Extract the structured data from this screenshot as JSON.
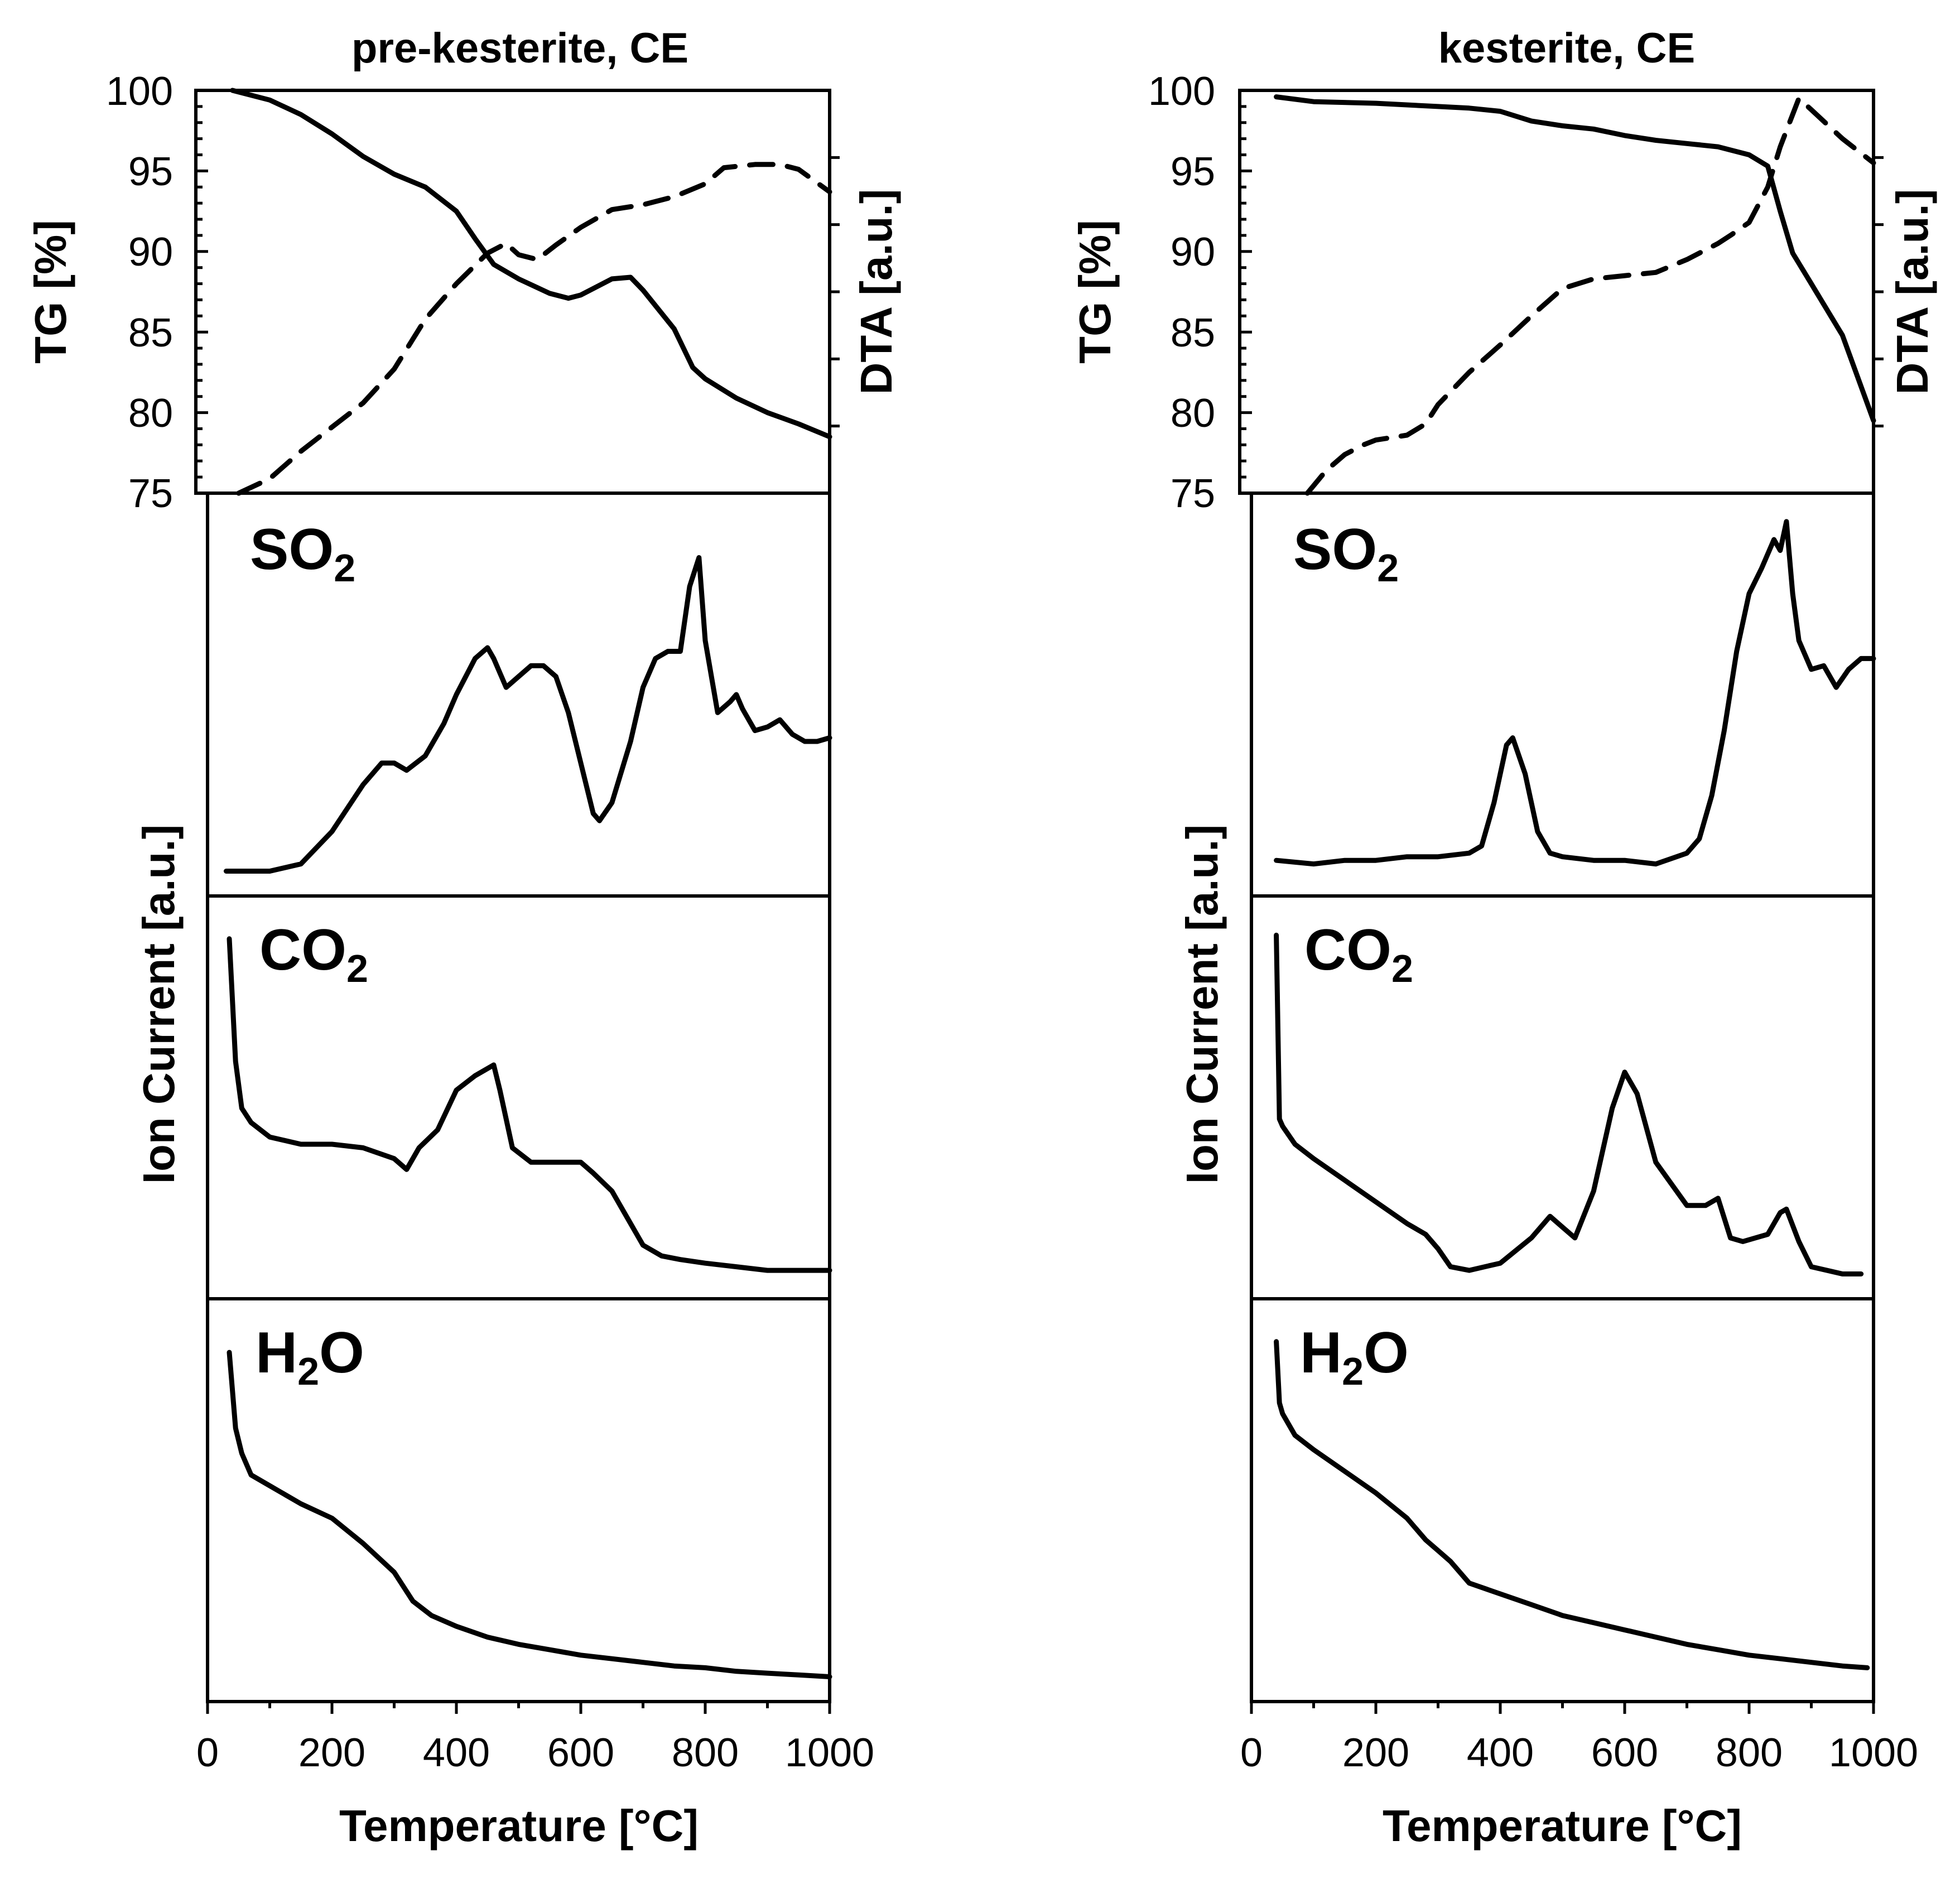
{
  "chart_data": [
    {
      "type": "line",
      "title": "pre-kesterite, CE",
      "xlabel": "Temperature [°C]",
      "xlim": [
        0,
        1000
      ],
      "xticks": [
        "0",
        "200",
        "400",
        "600",
        "800",
        "1000"
      ],
      "tg_panel": {
        "ylabel_left": "TG [%]",
        "ylabel_right": "DTA [a.u.]",
        "ylim": [
          75,
          100
        ],
        "yticks": [
          "75",
          "80",
          "85",
          "90",
          "95",
          "100"
        ],
        "series": [
          {
            "name": "TG",
            "style": "solid",
            "x": [
              40,
              100,
              150,
              200,
              250,
              300,
              350,
              400,
              430,
              460,
              500,
              550,
              580,
              600,
              650,
              680,
              700,
              750,
              780,
              800,
              850,
              900,
              950,
              1000
            ],
            "y": [
              100,
              99.4,
              98.5,
              97.3,
              95.9,
              94.8,
              94.0,
              92.5,
              90.8,
              89.2,
              88.3,
              87.4,
              87.1,
              87.3,
              88.3,
              88.4,
              87.6,
              85.2,
              82.8,
              82.1,
              80.9,
              80.0,
              79.3,
              78.5
            ]
          },
          {
            "name": "DTA",
            "style": "dashed",
            "x": [
              50,
              100,
              150,
              200,
              250,
              300,
              350,
              400,
              450,
              480,
              500,
              530,
              560,
              600,
              650,
              700,
              750,
              800,
              830,
              880,
              920,
              950,
              1000
            ],
            "y": [
              75.0,
              75.9,
              77.6,
              79.1,
              80.6,
              82.7,
              85.8,
              88.0,
              89.9,
              90.5,
              89.8,
              89.5,
              90.4,
              91.5,
              92.6,
              92.9,
              93.4,
              94.2,
              95.2,
              95.4,
              95.4,
              95.1,
              93.7
            ]
          }
        ]
      },
      "ion_current_ylabel": "Ion Current [a.u.]",
      "gas_panels": [
        {
          "gas": "SO",
          "subscript": "2",
          "ylim": [
            0,
            100
          ],
          "x": [
            30,
            60,
            100,
            150,
            200,
            250,
            280,
            300,
            320,
            350,
            380,
            400,
            430,
            450,
            460,
            480,
            500,
            520,
            540,
            560,
            580,
            600,
            620,
            630,
            650,
            680,
            700,
            720,
            740,
            760,
            775,
            790,
            800,
            820,
            840,
            850,
            860,
            880,
            900,
            920,
            940,
            960,
            980,
            1000
          ],
          "y": [
            1,
            1,
            1,
            3,
            12,
            25,
            31,
            31,
            29,
            33,
            42,
            50,
            60,
            63,
            60,
            52,
            55,
            58,
            58,
            55,
            45,
            31,
            17,
            15,
            20,
            37,
            52,
            60,
            62,
            62,
            80,
            88,
            65,
            45,
            48,
            50,
            46,
            40,
            41,
            43,
            39,
            37,
            37,
            38
          ]
        },
        {
          "gas": "CO",
          "subscript": "2",
          "ylim": [
            0,
            100
          ],
          "x": [
            35,
            45,
            55,
            70,
            100,
            150,
            200,
            250,
            300,
            320,
            340,
            370,
            400,
            430,
            450,
            460,
            470,
            490,
            520,
            550,
            580,
            600,
            620,
            650,
            680,
            700,
            730,
            760,
            800,
            850,
            900,
            950,
            1000
          ],
          "y": [
            94,
            60,
            47,
            43,
            39,
            37,
            37,
            36,
            33,
            30,
            36,
            41,
            52,
            56,
            58,
            59,
            52,
            36,
            32,
            32,
            32,
            32,
            29,
            24,
            15,
            9,
            6,
            5,
            4,
            3,
            2,
            2,
            2
          ]
        },
        {
          "gas": "H",
          "subscript": "2",
          "suffix": "O",
          "ylim": [
            0,
            100
          ],
          "x": [
            35,
            45,
            55,
            70,
            100,
            150,
            200,
            250,
            300,
            330,
            360,
            400,
            450,
            500,
            550,
            600,
            650,
            700,
            750,
            800,
            850,
            900,
            950,
            1000
          ],
          "y": [
            91,
            70,
            63,
            57,
            54,
            49,
            45,
            38,
            30,
            22,
            18,
            15,
            12,
            10,
            8.5,
            7,
            6,
            5,
            4,
            3.5,
            2.5,
            2,
            1.5,
            1
          ]
        }
      ]
    },
    {
      "type": "line",
      "title": "kesterite, CE",
      "xlabel": "Temperature [°C]",
      "xlim": [
        0,
        1000
      ],
      "xticks": [
        "0",
        "200",
        "400",
        "600",
        "800",
        "1000"
      ],
      "tg_panel": {
        "ylabel_left": "TG [%]",
        "ylabel_right": "DTA [a.u.]",
        "ylim": [
          75,
          100
        ],
        "yticks": [
          "75",
          "80",
          "85",
          "90",
          "95",
          "100"
        ],
        "series": [
          {
            "name": "TG",
            "style": "solid",
            "x": [
              40,
              100,
              200,
              300,
              350,
              400,
              450,
              500,
              550,
              600,
              650,
              700,
              750,
              800,
              830,
              850,
              870,
              900,
              950,
              1000
            ],
            "y": [
              99.6,
              99.3,
              99.2,
              99.0,
              98.9,
              98.7,
              98.1,
              97.8,
              97.6,
              97.2,
              96.9,
              96.7,
              96.5,
              96.0,
              95.3,
              92.5,
              89.9,
              88.0,
              84.8,
              79.5
            ]
          },
          {
            "name": "DTA",
            "style": "dashed",
            "x": [
              90,
              120,
              150,
              180,
              200,
              250,
              280,
              300,
              350,
              400,
              450,
              500,
              550,
              600,
              650,
              700,
              750,
              770,
              800,
              830,
              850,
              880,
              900,
              950,
              1000
            ],
            "y": [
              75.0,
              76.4,
              77.4,
              78.0,
              78.3,
              78.6,
              79.3,
              80.5,
              82.5,
              84.2,
              86.0,
              87.7,
              88.3,
              88.5,
              88.7,
              89.5,
              90.5,
              91.0,
              91.8,
              94.0,
              96.5,
              99.5,
              98.8,
              97.0,
              95.5
            ]
          }
        ]
      },
      "ion_current_ylabel": "Ion Current [a.u.]",
      "gas_panels": [
        {
          "gas": "SO",
          "subscript": "2",
          "ylim": [
            0,
            100
          ],
          "x": [
            40,
            100,
            150,
            200,
            250,
            300,
            350,
            370,
            390,
            410,
            420,
            440,
            460,
            480,
            500,
            550,
            600,
            650,
            700,
            720,
            740,
            760,
            780,
            800,
            820,
            840,
            850,
            860,
            870,
            880,
            900,
            920,
            940,
            960,
            980,
            1000
          ],
          "y": [
            4,
            3,
            4,
            4,
            5,
            5,
            6,
            8,
            20,
            36,
            38,
            28,
            12,
            6,
            5,
            4,
            4,
            3,
            6,
            10,
            22,
            40,
            62,
            78,
            85,
            93,
            90,
            98,
            78,
            65,
            57,
            58,
            52,
            57,
            60,
            60
          ]
        },
        {
          "gas": "CO",
          "subscript": "2",
          "ylim": [
            0,
            100
          ],
          "x": [
            40,
            45,
            50,
            70,
            100,
            150,
            200,
            250,
            280,
            300,
            320,
            350,
            400,
            450,
            480,
            500,
            520,
            550,
            580,
            600,
            620,
            650,
            700,
            730,
            750,
            770,
            790,
            810,
            830,
            850,
            860,
            880,
            900,
            950,
            980
          ],
          "y": [
            95,
            44,
            42,
            37,
            33,
            27,
            21,
            15,
            12,
            8,
            3,
            2,
            4,
            11,
            17,
            14,
            11,
            24,
            47,
            57,
            51,
            32,
            20,
            20,
            22,
            11,
            10,
            11,
            12,
            18,
            19,
            10,
            3,
            1,
            1
          ]
        },
        {
          "gas": "H",
          "subscript": "2",
          "suffix": "O",
          "ylim": [
            0,
            100
          ],
          "x": [
            40,
            45,
            50,
            70,
            100,
            150,
            200,
            250,
            280,
            300,
            320,
            350,
            400,
            450,
            500,
            550,
            600,
            650,
            700,
            750,
            800,
            850,
            900,
            950,
            990
          ],
          "y": [
            94,
            77,
            74,
            68,
            64,
            58,
            52,
            45,
            39,
            36,
            33,
            27,
            24,
            21,
            18,
            16,
            14,
            12,
            10,
            8.5,
            7,
            6,
            5,
            4,
            3.5
          ]
        }
      ]
    }
  ]
}
